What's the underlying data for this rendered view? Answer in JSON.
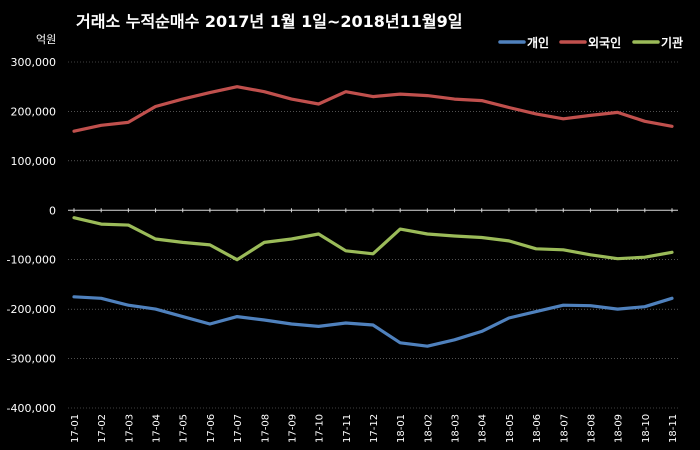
{
  "chart_data": {
    "type": "line",
    "title": "거래소 누적순매수 2017년 1월 1일~2018년11월9일",
    "ylabel": "억원",
    "xlabel": "",
    "ylim": [
      -400000,
      300000
    ],
    "yticks": [
      300000,
      200000,
      100000,
      0,
      -100000,
      -200000,
      -300000,
      -400000
    ],
    "ytick_labels": [
      "300,000",
      "200,000",
      "100,000",
      "0",
      "-100,000",
      "-200,000",
      "-300,000",
      "-400,000"
    ],
    "categories": [
      "17-01",
      "17-02",
      "17-03",
      "17-04",
      "17-05",
      "17-06",
      "17-07",
      "17-08",
      "17-09",
      "17-10",
      "17-11",
      "17-12",
      "18-01",
      "18-02",
      "18-03",
      "18-04",
      "18-05",
      "18-06",
      "18-07",
      "18-08",
      "18-09",
      "18-10",
      "18-11"
    ],
    "grid": true,
    "legend_position": "top-right",
    "series": [
      {
        "name": "개인",
        "color": "#4f81bd",
        "values": [
          -175000,
          -178000,
          -192000,
          -200000,
          -215000,
          -230000,
          -215000,
          -222000,
          -230000,
          -235000,
          -228000,
          -232000,
          -268000,
          -275000,
          -262000,
          -245000,
          -218000,
          -205000,
          -192000,
          -193000,
          -200000,
          -195000,
          -178000
        ]
      },
      {
        "name": "외국인",
        "color": "#c0504d",
        "values": [
          160000,
          172000,
          178000,
          210000,
          225000,
          238000,
          250000,
          240000,
          225000,
          215000,
          240000,
          230000,
          235000,
          232000,
          225000,
          222000,
          208000,
          195000,
          185000,
          192000,
          198000,
          180000,
          170000
        ]
      },
      {
        "name": "기관",
        "color": "#9bbb59",
        "values": [
          -15000,
          -28000,
          -30000,
          -58000,
          -65000,
          -70000,
          -100000,
          -65000,
          -58000,
          -48000,
          -82000,
          -88000,
          -38000,
          -48000,
          -52000,
          -55000,
          -62000,
          -78000,
          -80000,
          -90000,
          -98000,
          -95000,
          -85000
        ]
      }
    ]
  }
}
